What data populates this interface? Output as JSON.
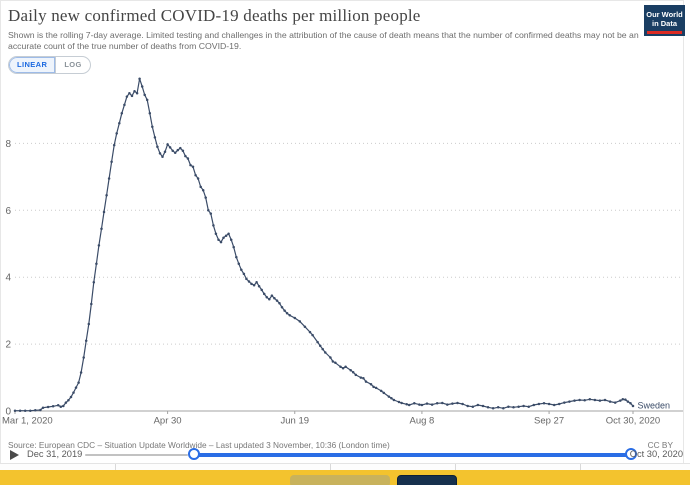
{
  "header": {
    "title": "Daily new confirmed COVID-19 deaths per million people",
    "subtitle": "Shown is the rolling 7-day average. Limited testing and challenges in the attribution of the cause of death means that the number of confirmed deaths may not be an accurate count of the true number of deaths from COVID-19."
  },
  "logo": {
    "line1": "Our World",
    "line2": "in Data"
  },
  "scale_toggle": {
    "linear": "LINEAR",
    "log": "LOG",
    "selected": "LINEAR"
  },
  "footer": {
    "source": "Source: European CDC – Situation Update Worldwide – Last updated 3 November, 10:36 (London time)",
    "license": "CC BY"
  },
  "timeline": {
    "start": "Dec 31, 2019",
    "end": "Oct 30, 2020",
    "range_start_frac": 0.2
  },
  "colors": {
    "line": "#3b4c68",
    "accent_blue": "#2a6de5",
    "logo_navy": "#1a3e63",
    "logo_red": "#dc2b23",
    "cookie_yellow": "#f3c32e",
    "grid": "#cccccc",
    "axis": "#a3a3a3",
    "tick_label": "#666666"
  },
  "chart_data": {
    "type": "line",
    "title": "Daily new confirmed COVID-19 deaths per million people",
    "entity": "Sweden",
    "x_unit": "days since 2020-03-01",
    "xlim_days": [
      0,
      243
    ],
    "ylim": [
      0,
      10
    ],
    "y_ticks": [
      0,
      2,
      4,
      6,
      8
    ],
    "x_ticks": [
      {
        "day": 0,
        "label": "Mar 1, 2020",
        "align": "start"
      },
      {
        "day": 60,
        "label": "Apr 30",
        "align": "middle"
      },
      {
        "day": 110,
        "label": "Jun 19",
        "align": "middle"
      },
      {
        "day": 160,
        "label": "Aug 8",
        "align": "middle"
      },
      {
        "day": 210,
        "label": "Sep 27",
        "align": "middle"
      },
      {
        "day": 243,
        "label": "Oct 30, 2020",
        "align": "middle"
      }
    ],
    "grid": "dotted horizontal",
    "legend_position": "end-of-line",
    "series": [
      {
        "name": "Sweden",
        "points": [
          [
            0,
            0.01
          ],
          [
            2,
            0.01
          ],
          [
            4,
            0.01
          ],
          [
            6,
            0.01
          ],
          [
            8,
            0.02
          ],
          [
            10,
            0.03
          ],
          [
            11,
            0.1
          ],
          [
            13,
            0.12
          ],
          [
            15,
            0.14
          ],
          [
            17,
            0.17
          ],
          [
            18,
            0.13
          ],
          [
            19,
            0.15
          ],
          [
            20,
            0.25
          ],
          [
            21,
            0.32
          ],
          [
            22,
            0.42
          ],
          [
            23,
            0.55
          ],
          [
            24,
            0.7
          ],
          [
            25,
            0.85
          ],
          [
            26,
            1.15
          ],
          [
            27,
            1.6
          ],
          [
            28,
            2.1
          ],
          [
            29,
            2.6
          ],
          [
            30,
            3.2
          ],
          [
            31,
            3.85
          ],
          [
            32,
            4.4
          ],
          [
            33,
            4.95
          ],
          [
            34,
            5.45
          ],
          [
            35,
            5.95
          ],
          [
            36,
            6.45
          ],
          [
            37,
            6.95
          ],
          [
            38,
            7.45
          ],
          [
            39,
            7.95
          ],
          [
            40,
            8.3
          ],
          [
            41,
            8.6
          ],
          [
            42,
            8.9
          ],
          [
            43,
            9.15
          ],
          [
            44,
            9.4
          ],
          [
            45,
            9.5
          ],
          [
            46,
            9.42
          ],
          [
            47,
            9.56
          ],
          [
            48,
            9.5
          ],
          [
            49,
            9.93
          ],
          [
            50,
            9.7
          ],
          [
            51,
            9.45
          ],
          [
            52,
            9.3
          ],
          [
            53,
            8.9
          ],
          [
            54,
            8.5
          ],
          [
            55,
            8.18
          ],
          [
            56,
            7.9
          ],
          [
            57,
            7.7
          ],
          [
            58,
            7.6
          ],
          [
            59,
            7.75
          ],
          [
            60,
            7.97
          ],
          [
            61,
            7.88
          ],
          [
            62,
            7.78
          ],
          [
            63,
            7.72
          ],
          [
            64,
            7.8
          ],
          [
            65,
            7.86
          ],
          [
            66,
            7.78
          ],
          [
            67,
            7.62
          ],
          [
            68,
            7.55
          ],
          [
            69,
            7.35
          ],
          [
            70,
            7.3
          ],
          [
            71,
            7.05
          ],
          [
            72,
            6.95
          ],
          [
            73,
            6.7
          ],
          [
            74,
            6.6
          ],
          [
            75,
            6.38
          ],
          [
            76,
            6.0
          ],
          [
            77,
            5.9
          ],
          [
            78,
            5.55
          ],
          [
            79,
            5.3
          ],
          [
            80,
            5.12
          ],
          [
            81,
            5.05
          ],
          [
            82,
            5.18
          ],
          [
            83,
            5.24
          ],
          [
            84,
            5.3
          ],
          [
            85,
            5.12
          ],
          [
            86,
            4.9
          ],
          [
            87,
            4.6
          ],
          [
            88,
            4.4
          ],
          [
            89,
            4.22
          ],
          [
            90,
            4.1
          ],
          [
            91,
            3.95
          ],
          [
            92,
            3.87
          ],
          [
            93,
            3.8
          ],
          [
            94,
            3.76
          ],
          [
            95,
            3.85
          ],
          [
            96,
            3.73
          ],
          [
            97,
            3.62
          ],
          [
            98,
            3.5
          ],
          [
            99,
            3.4
          ],
          [
            100,
            3.34
          ],
          [
            101,
            3.45
          ],
          [
            102,
            3.37
          ],
          [
            103,
            3.3
          ],
          [
            104,
            3.22
          ],
          [
            105,
            3.1
          ],
          [
            106,
            3.0
          ],
          [
            107,
            2.92
          ],
          [
            108,
            2.86
          ],
          [
            110,
            2.78
          ],
          [
            112,
            2.68
          ],
          [
            114,
            2.52
          ],
          [
            116,
            2.36
          ],
          [
            117,
            2.27
          ],
          [
            119,
            2.06
          ],
          [
            120,
            1.95
          ],
          [
            121,
            1.85
          ],
          [
            122,
            1.75
          ],
          [
            124,
            1.6
          ],
          [
            125,
            1.48
          ],
          [
            126,
            1.44
          ],
          [
            128,
            1.32
          ],
          [
            129,
            1.28
          ],
          [
            130,
            1.32
          ],
          [
            132,
            1.22
          ],
          [
            133,
            1.16
          ],
          [
            134,
            1.08
          ],
          [
            136,
            1.0
          ],
          [
            137,
            0.98
          ],
          [
            138,
            0.88
          ],
          [
            140,
            0.8
          ],
          [
            141,
            0.72
          ],
          [
            142,
            0.69
          ],
          [
            144,
            0.6
          ],
          [
            145,
            0.54
          ],
          [
            147,
            0.43
          ],
          [
            148,
            0.38
          ],
          [
            149,
            0.33
          ],
          [
            151,
            0.27
          ],
          [
            152,
            0.24
          ],
          [
            154,
            0.2
          ],
          [
            155,
            0.18
          ],
          [
            157,
            0.23
          ],
          [
            159,
            0.19
          ],
          [
            160,
            0.18
          ],
          [
            162,
            0.22
          ],
          [
            164,
            0.19
          ],
          [
            166,
            0.23
          ],
          [
            168,
            0.24
          ],
          [
            170,
            0.19
          ],
          [
            172,
            0.22
          ],
          [
            174,
            0.24
          ],
          [
            176,
            0.21
          ],
          [
            178,
            0.15
          ],
          [
            180,
            0.13
          ],
          [
            182,
            0.18
          ],
          [
            184,
            0.15
          ],
          [
            186,
            0.11
          ],
          [
            188,
            0.08
          ],
          [
            190,
            0.11
          ],
          [
            192,
            0.08
          ],
          [
            194,
            0.13
          ],
          [
            196,
            0.11
          ],
          [
            198,
            0.13
          ],
          [
            200,
            0.15
          ],
          [
            202,
            0.13
          ],
          [
            204,
            0.18
          ],
          [
            206,
            0.21
          ],
          [
            208,
            0.23
          ],
          [
            210,
            0.21
          ],
          [
            212,
            0.18
          ],
          [
            214,
            0.21
          ],
          [
            216,
            0.25
          ],
          [
            218,
            0.28
          ],
          [
            220,
            0.31
          ],
          [
            222,
            0.33
          ],
          [
            224,
            0.32
          ],
          [
            226,
            0.35
          ],
          [
            228,
            0.33
          ],
          [
            230,
            0.31
          ],
          [
            232,
            0.33
          ],
          [
            234,
            0.28
          ],
          [
            236,
            0.25
          ],
          [
            238,
            0.31
          ],
          [
            239,
            0.35
          ],
          [
            240,
            0.34
          ],
          [
            241,
            0.28
          ],
          [
            242,
            0.23
          ],
          [
            243,
            0.15
          ]
        ]
      }
    ]
  }
}
